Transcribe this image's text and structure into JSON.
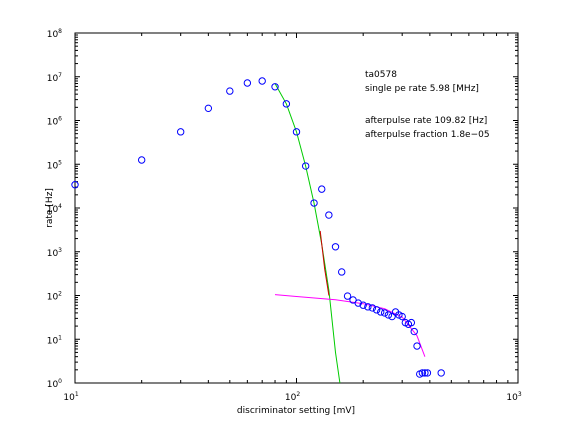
{
  "chart_data": {
    "type": "scatter",
    "xlabel": "discriminator setting [mV]",
    "ylabel": "rate [Hz]",
    "xscale": "log",
    "yscale": "log",
    "xlim": [
      10,
      1000
    ],
    "ylim": [
      1,
      100000000
    ],
    "xticks": [
      {
        "value": 10,
        "label": "10",
        "sup": "1"
      },
      {
        "value": 100,
        "label": "10",
        "sup": "2"
      },
      {
        "value": 1000,
        "label": "10",
        "sup": "3"
      }
    ],
    "yticks": [
      {
        "value": 1,
        "label": "10",
        "sup": "0"
      },
      {
        "value": 10,
        "label": "10",
        "sup": "1"
      },
      {
        "value": 100,
        "label": "10",
        "sup": "2"
      },
      {
        "value": 1000,
        "label": "10",
        "sup": "3"
      },
      {
        "value": 10000,
        "label": "10",
        "sup": "4"
      },
      {
        "value": 100000,
        "label": "10",
        "sup": "5"
      },
      {
        "value": 1000000,
        "label": "10",
        "sup": "6"
      },
      {
        "value": 10000000,
        "label": "10",
        "sup": "7"
      },
      {
        "value": 100000000,
        "label": "10",
        "sup": "8"
      }
    ],
    "minor_ticks": true,
    "annotations": [
      "ta0578",
      "single pe rate 5.98 [MHz]",
      "afterpulse rate 109.82 [Hz]",
      "afterpulse fraction 1.8e−05"
    ],
    "series": [
      {
        "kind": "markers",
        "color": "#0000ff",
        "x": [
          10,
          20,
          30,
          40,
          50,
          60,
          70,
          80,
          90,
          100,
          110,
          120,
          130,
          140,
          150,
          160,
          170,
          180,
          190,
          200,
          210,
          220,
          230,
          240,
          250,
          260,
          270,
          280,
          290,
          300,
          310,
          320,
          330,
          340,
          350,
          360,
          370,
          380,
          390,
          450
        ],
        "values": [
          34000,
          125000,
          550000,
          1900000,
          4700000,
          7200000,
          8000000,
          5900000,
          2400000,
          550000,
          91000,
          13000,
          27000,
          6900,
          1300,
          345,
          97,
          79,
          67,
          60,
          55,
          52,
          47,
          42,
          40,
          36,
          33,
          42,
          36,
          33,
          24,
          22,
          24,
          15,
          7,
          1.6,
          1.7,
          1.7,
          1.7,
          1.7
        ]
      },
      {
        "kind": "line",
        "color": "#00cc00",
        "x": [
          80,
          90,
          100,
          110,
          120,
          130,
          140,
          150,
          157
        ],
        "values": [
          7000000,
          2400000,
          550000,
          90000,
          13000,
          1500,
          130,
          5,
          1
        ]
      },
      {
        "kind": "line",
        "color": "#ff00ff",
        "x": [
          80,
          100,
          150,
          200,
          250,
          300,
          350,
          380
        ],
        "values": [
          105,
          95,
          80,
          65,
          50,
          32,
          12,
          4
        ]
      },
      {
        "kind": "line",
        "color": "#cc0000",
        "x": [
          128,
          134,
          140
        ],
        "values": [
          3000,
          400,
          100
        ]
      }
    ]
  }
}
